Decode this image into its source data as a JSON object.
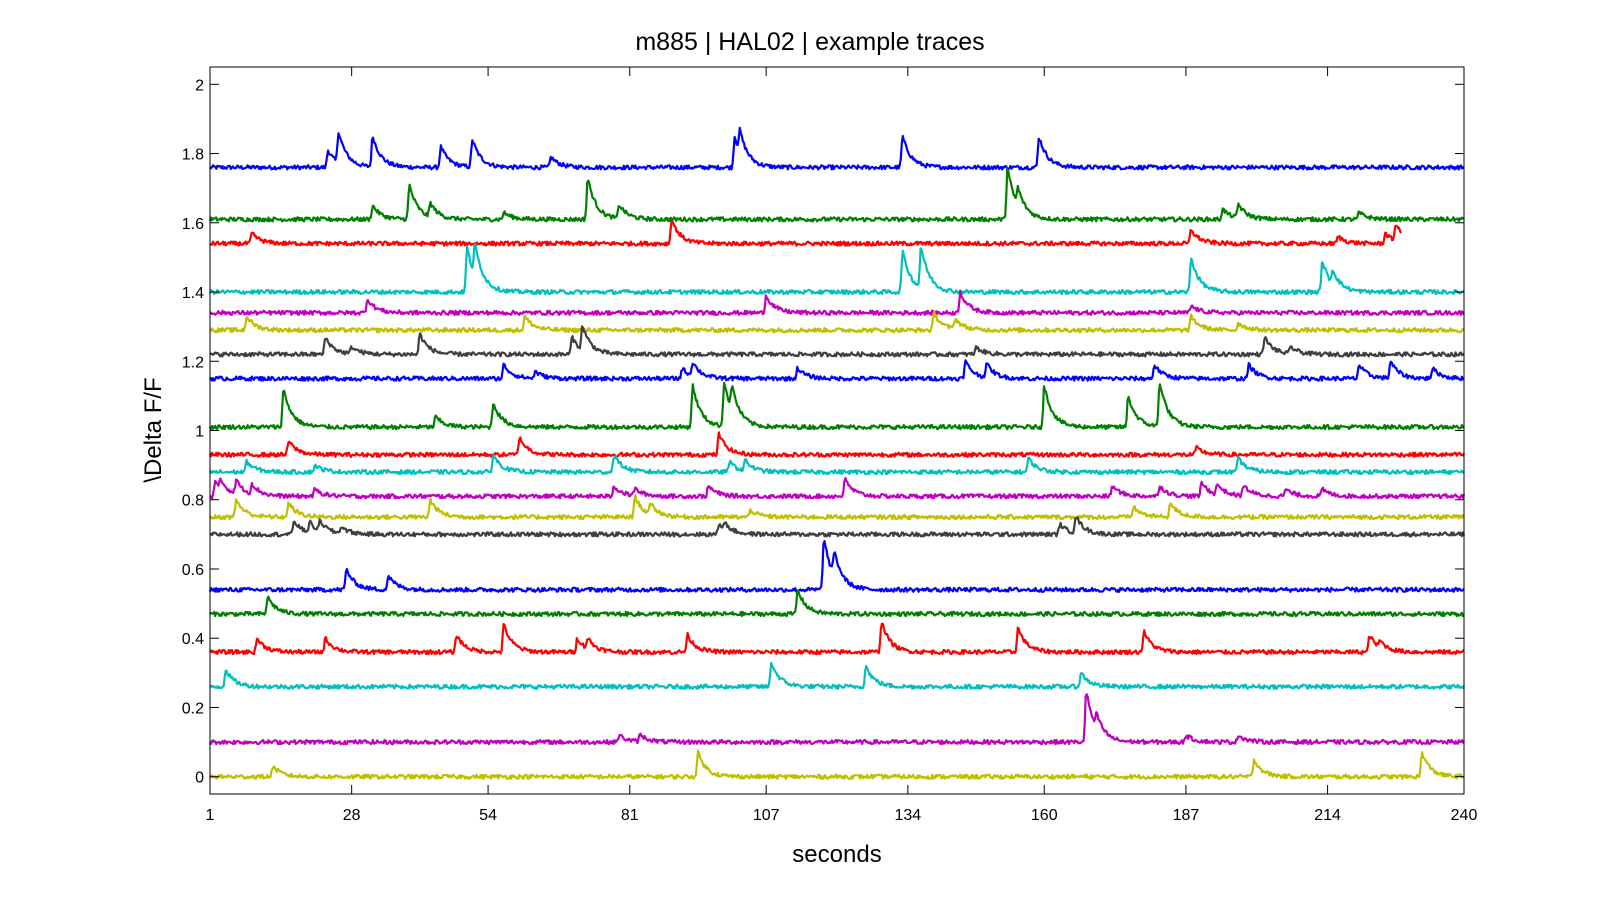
{
  "chart_data": {
    "type": "line",
    "title": "m885 | HAL02 | example traces",
    "xlabel": "seconds",
    "ylabel": "\\Delta F/F",
    "xlim": [
      1,
      240
    ],
    "ylim": [
      -0.05,
      2.05
    ],
    "xticks": [
      1,
      28,
      54,
      81,
      107,
      134,
      160,
      187,
      214,
      240
    ],
    "yticks": [
      0,
      0.2,
      0.4,
      0.6,
      0.8,
      1,
      1.2,
      1.4,
      1.6,
      1.8,
      2
    ],
    "ytick_labels": [
      "0",
      "0.2",
      "0.4",
      "0.6",
      "0.8",
      "1",
      "1.2",
      "1.4",
      "1.6",
      "1.8",
      "2"
    ],
    "grid": false,
    "legend": "none",
    "series": [
      {
        "color": "#0000ff",
        "baseline": 1.76,
        "end": 240,
        "peaks": [
          [
            23.5,
            0.05
          ],
          [
            25.5,
            0.09
          ],
          [
            32,
            0.09
          ],
          [
            45,
            0.06
          ],
          [
            51,
            0.08
          ],
          [
            66,
            0.03
          ],
          [
            101,
            0.09
          ],
          [
            102,
            0.06
          ],
          [
            133,
            0.09
          ],
          [
            159,
            0.09
          ]
        ]
      },
      {
        "color": "#007f00",
        "baseline": 1.61,
        "end": 240,
        "peaks": [
          [
            32,
            0.04
          ],
          [
            39,
            0.1
          ],
          [
            43,
            0.04
          ],
          [
            57,
            0.02
          ],
          [
            73,
            0.12
          ],
          [
            79,
            0.04
          ],
          [
            153,
            0.15
          ],
          [
            155,
            0.05
          ],
          [
            194,
            0.03
          ],
          [
            197,
            0.04
          ],
          [
            220,
            0.02
          ]
        ]
      },
      {
        "color": "#ff0000",
        "baseline": 1.54,
        "end": 228,
        "peaks": [
          [
            9,
            0.03
          ],
          [
            89,
            0.07
          ],
          [
            188,
            0.04
          ],
          [
            216,
            0.02
          ],
          [
            225,
            0.03
          ],
          [
            227,
            0.05
          ]
        ]
      },
      {
        "color": "#00bfbf",
        "baseline": 1.4,
        "end": 240,
        "peaks": [
          [
            50,
            0.13
          ],
          [
            51.5,
            0.09
          ],
          [
            133,
            0.12
          ],
          [
            136.5,
            0.12
          ],
          [
            188,
            0.1
          ],
          [
            213,
            0.09
          ],
          [
            215,
            0.04
          ]
        ]
      },
      {
        "color": "#bf00bf",
        "baseline": 1.34,
        "end": 240,
        "peaks": [
          [
            31,
            0.04
          ],
          [
            107,
            0.05
          ],
          [
            144,
            0.06
          ],
          [
            188,
            0.02
          ]
        ]
      },
      {
        "color": "#bfbf00",
        "baseline": 1.29,
        "end": 240,
        "peaks": [
          [
            8,
            0.04
          ],
          [
            61,
            0.04
          ],
          [
            139,
            0.05
          ],
          [
            143,
            0.03
          ],
          [
            188,
            0.04
          ],
          [
            197,
            0.02
          ]
        ]
      },
      {
        "color": "#3f3f3f",
        "baseline": 1.22,
        "end": 240,
        "peaks": [
          [
            23,
            0.05
          ],
          [
            28,
            0.02
          ],
          [
            41,
            0.06
          ],
          [
            70,
            0.05
          ],
          [
            72,
            0.07
          ],
          [
            147,
            0.02
          ],
          [
            202,
            0.05
          ],
          [
            207,
            0.02
          ]
        ]
      },
      {
        "color": "#0000ff",
        "baseline": 1.15,
        "end": 240,
        "peaks": [
          [
            57,
            0.04
          ],
          [
            63,
            0.02
          ],
          [
            91,
            0.03
          ],
          [
            93,
            0.04
          ],
          [
            113,
            0.03
          ],
          [
            145,
            0.05
          ],
          [
            149,
            0.04
          ],
          [
            181,
            0.04
          ],
          [
            199,
            0.04
          ],
          [
            220,
            0.04
          ],
          [
            226,
            0.05
          ],
          [
            234,
            0.03
          ]
        ]
      },
      {
        "color": "#007f00",
        "baseline": 1.01,
        "end": 240,
        "peaks": [
          [
            15,
            0.11
          ],
          [
            44,
            0.03
          ],
          [
            55,
            0.07
          ],
          [
            93,
            0.12
          ],
          [
            99,
            0.13
          ],
          [
            100.5,
            0.07
          ],
          [
            160,
            0.12
          ],
          [
            176,
            0.09
          ],
          [
            182,
            0.13
          ]
        ]
      },
      {
        "color": "#ff0000",
        "baseline": 0.93,
        "end": 240,
        "peaks": [
          [
            16,
            0.04
          ],
          [
            60,
            0.05
          ],
          [
            98,
            0.06
          ],
          [
            189,
            0.02
          ]
        ]
      },
      {
        "color": "#00bfbf",
        "baseline": 0.88,
        "end": 240,
        "peaks": [
          [
            8,
            0.03
          ],
          [
            21,
            0.02
          ],
          [
            55,
            0.05
          ],
          [
            78,
            0.05
          ],
          [
            100,
            0.03
          ],
          [
            103,
            0.03
          ],
          [
            157,
            0.04
          ],
          [
            197,
            0.04
          ]
        ]
      },
      {
        "color": "#bf00bf",
        "baseline": 0.81,
        "end": 240,
        "peaks": [
          [
            2,
            0.04
          ],
          [
            3,
            0.03
          ],
          [
            6,
            0.04
          ],
          [
            9,
            0.03
          ],
          [
            21,
            0.02
          ],
          [
            78,
            0.03
          ],
          [
            82,
            0.02
          ],
          [
            96,
            0.03
          ],
          [
            122,
            0.05
          ],
          [
            173,
            0.03
          ],
          [
            182,
            0.03
          ],
          [
            190,
            0.04
          ],
          [
            193,
            0.03
          ],
          [
            198,
            0.03
          ],
          [
            206,
            0.02
          ],
          [
            213,
            0.02
          ]
        ]
      },
      {
        "color": "#bfbf00",
        "baseline": 0.75,
        "end": 240,
        "peaks": [
          [
            6,
            0.05
          ],
          [
            16,
            0.04
          ],
          [
            43,
            0.05
          ],
          [
            82,
            0.06
          ],
          [
            85,
            0.03
          ],
          [
            104,
            0.02
          ],
          [
            177,
            0.03
          ],
          [
            184,
            0.04
          ]
        ]
      },
      {
        "color": "#3f3f3f",
        "baseline": 0.7,
        "end": 240,
        "peaks": [
          [
            17,
            0.04
          ],
          [
            20,
            0.03
          ],
          [
            22,
            0.03
          ],
          [
            26,
            0.02
          ],
          [
            98,
            0.03
          ],
          [
            99,
            0.02
          ],
          [
            163,
            0.03
          ],
          [
            166,
            0.05
          ]
        ]
      },
      {
        "color": "#0000ff",
        "baseline": 0.54,
        "end": 240,
        "peaks": [
          [
            27,
            0.06
          ],
          [
            35,
            0.04
          ],
          [
            118,
            0.15
          ],
          [
            120,
            0.07
          ]
        ]
      },
      {
        "color": "#007f00",
        "baseline": 0.47,
        "end": 240,
        "peaks": [
          [
            12,
            0.05
          ],
          [
            113,
            0.07
          ]
        ]
      },
      {
        "color": "#ff0000",
        "baseline": 0.36,
        "end": 240,
        "peaks": [
          [
            10,
            0.04
          ],
          [
            23,
            0.04
          ],
          [
            48,
            0.05
          ],
          [
            57,
            0.08
          ],
          [
            71,
            0.04
          ],
          [
            73,
            0.03
          ],
          [
            92,
            0.05
          ],
          [
            129,
            0.09
          ],
          [
            155,
            0.07
          ],
          [
            179,
            0.06
          ],
          [
            222,
            0.05
          ],
          [
            224,
            0.02
          ]
        ]
      },
      {
        "color": "#00bfbf",
        "baseline": 0.26,
        "end": 240,
        "peaks": [
          [
            4,
            0.05
          ],
          [
            108,
            0.07
          ],
          [
            126,
            0.06
          ],
          [
            167,
            0.04
          ]
        ]
      },
      {
        "color": "#bf00bf",
        "baseline": 0.1,
        "end": 240,
        "peaks": [
          [
            79,
            0.02
          ],
          [
            83,
            0.02
          ],
          [
            168,
            0.15
          ],
          [
            170,
            0.04
          ],
          [
            187,
            0.02
          ],
          [
            197,
            0.02
          ]
        ]
      },
      {
        "color": "#bfbf00",
        "baseline": 0.0,
        "end": 240,
        "peaks": [
          [
            13,
            0.03
          ],
          [
            94,
            0.07
          ],
          [
            200,
            0.05
          ],
          [
            232,
            0.07
          ]
        ]
      }
    ]
  }
}
